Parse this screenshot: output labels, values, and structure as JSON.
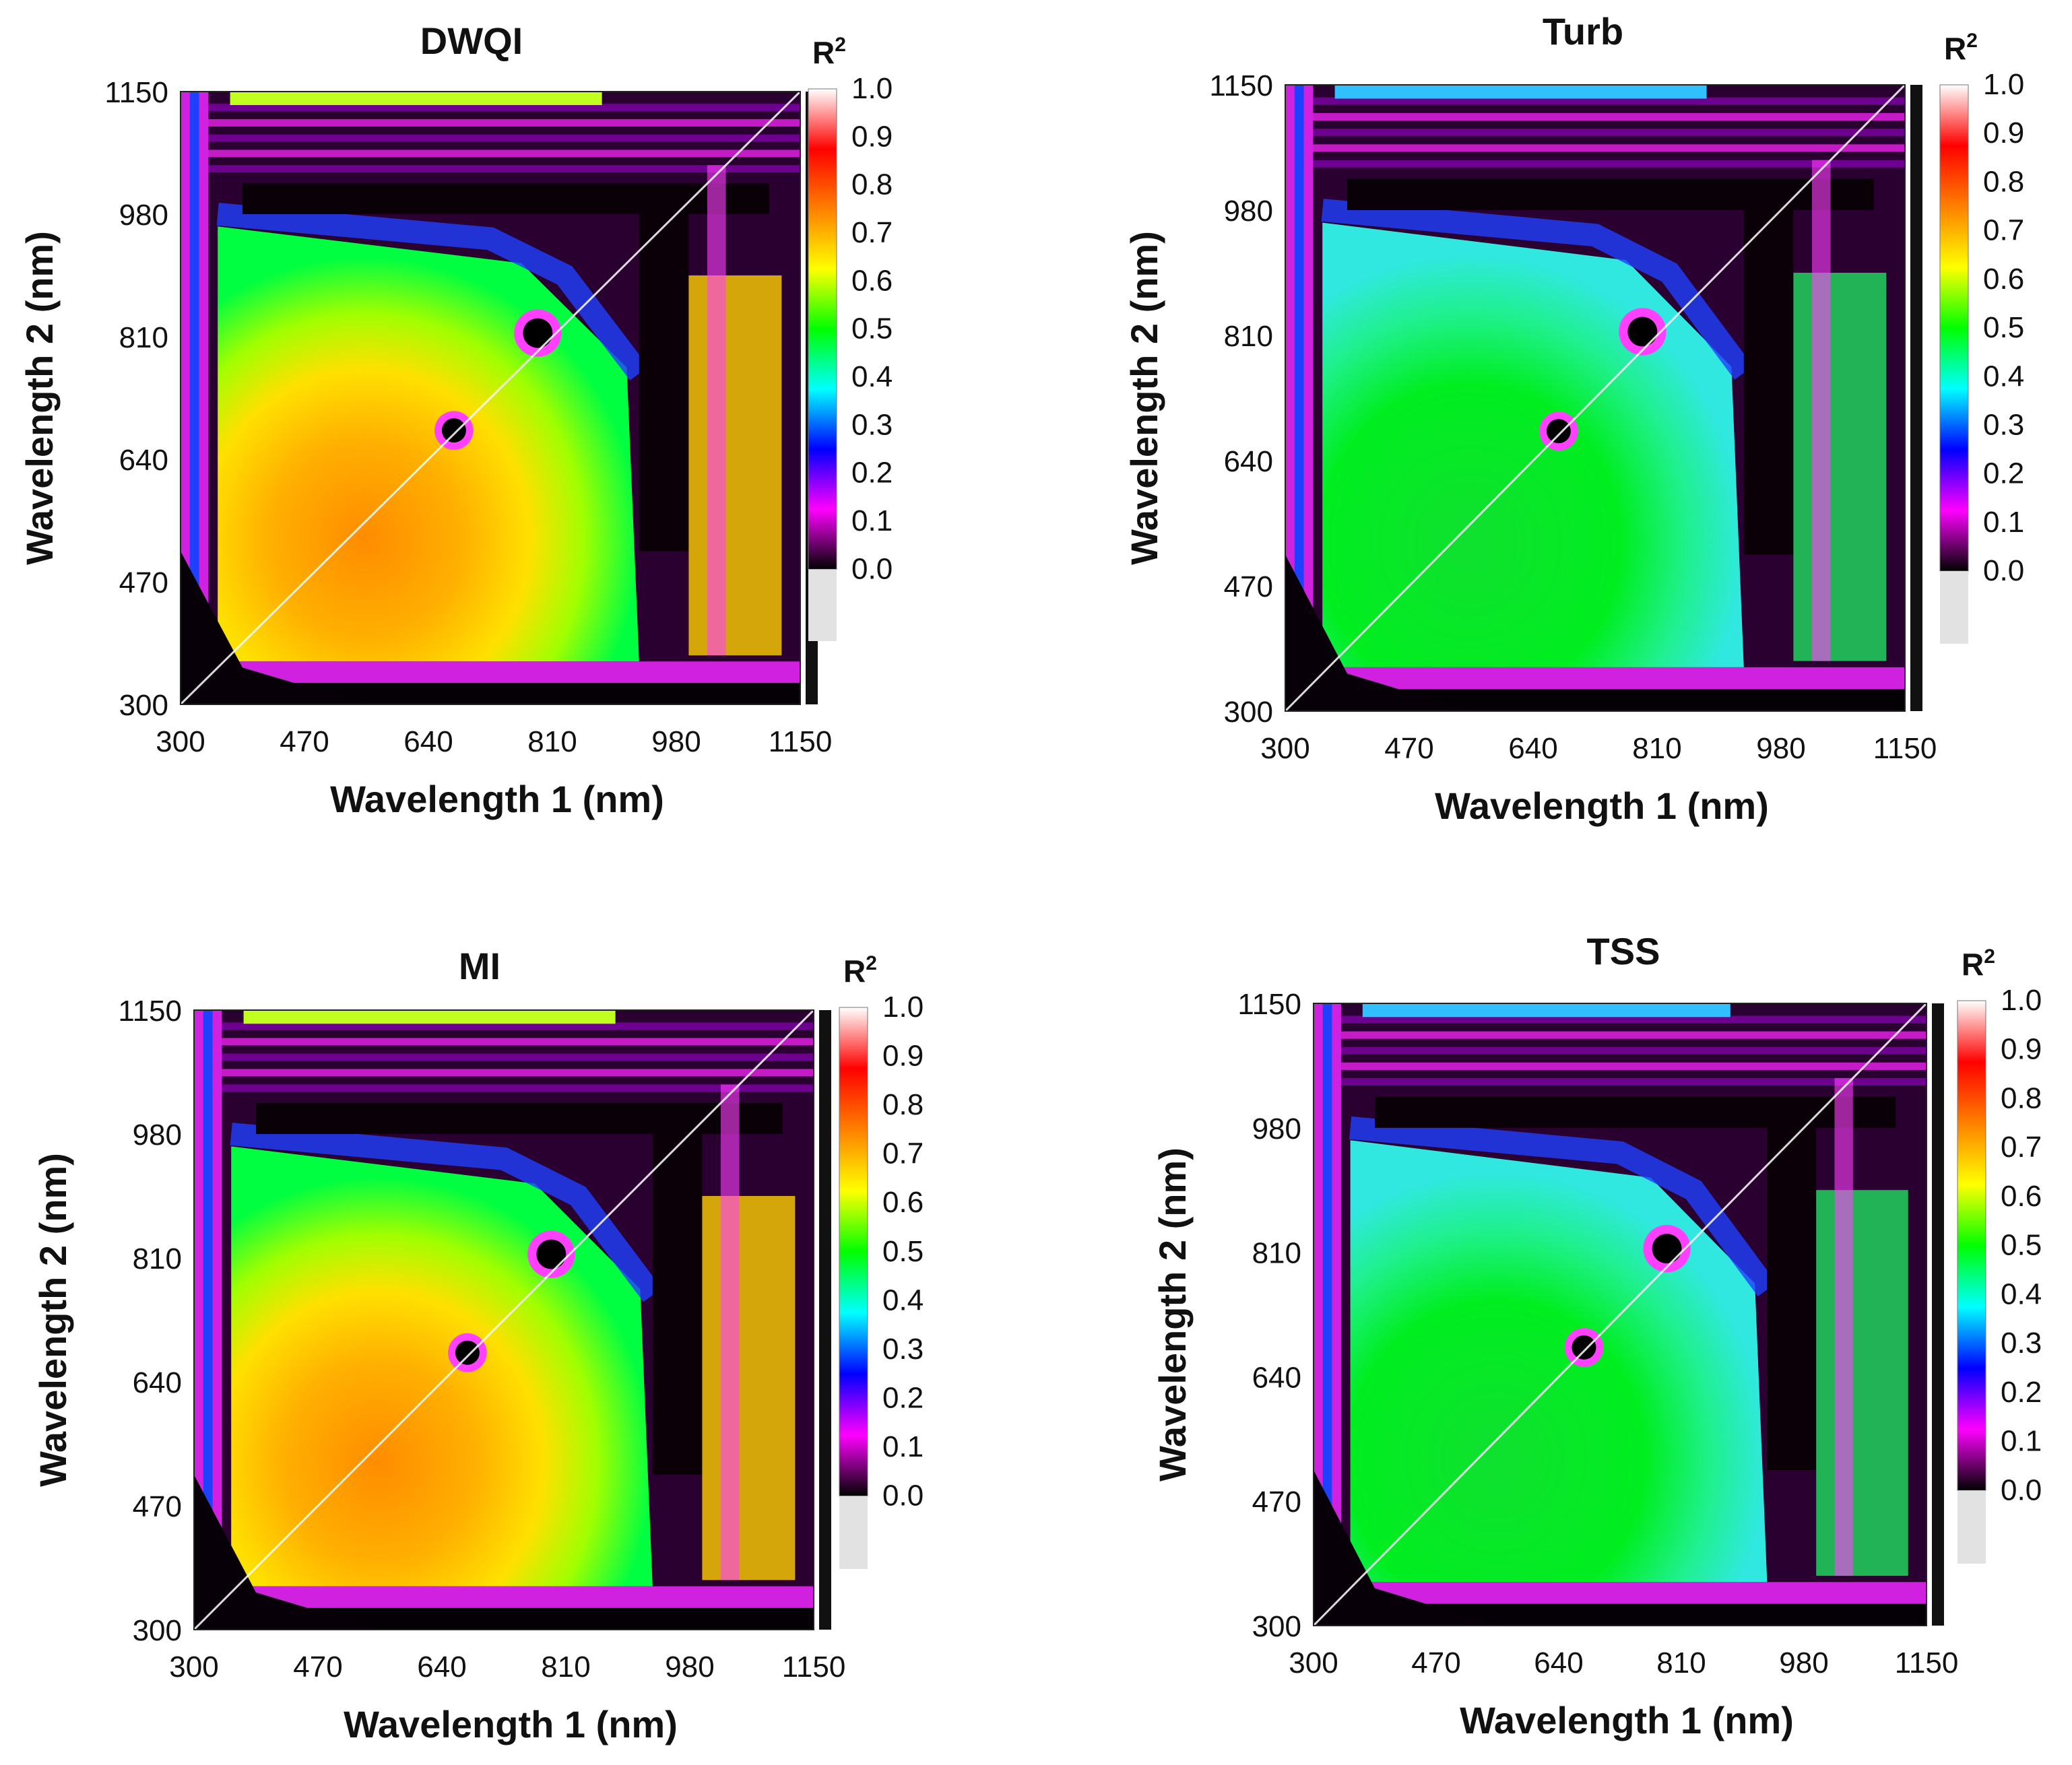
{
  "chart_data": [
    {
      "type": "heatmap",
      "title": "DWQI",
      "xlabel": "Wavelength 1 (nm)",
      "ylabel": "Wavelength 2 (nm)",
      "colorbar_label": "R",
      "colorbar_label_sup": "2",
      "x_ticks": [
        "300",
        "470",
        "640",
        "810",
        "980",
        "1150"
      ],
      "y_ticks": [
        "300",
        "470",
        "640",
        "810",
        "980",
        "1150"
      ],
      "xlim": [
        300,
        1150
      ],
      "ylim": [
        300,
        1150
      ],
      "colorbar_ticks": [
        "0.0",
        "0.1",
        "0.2",
        "0.3",
        "0.4",
        "0.5",
        "0.6",
        "0.7",
        "0.8",
        "0.9",
        "1.0"
      ],
      "colorbar_range": [
        0,
        1
      ],
      "peak_r2": 0.7
    },
    {
      "type": "heatmap",
      "title": "Turb",
      "xlabel": "Wavelength 1 (nm)",
      "ylabel": "Wavelength 2 (nm)",
      "colorbar_label": "R",
      "colorbar_label_sup": "2",
      "x_ticks": [
        "300",
        "470",
        "640",
        "810",
        "980",
        "1150"
      ],
      "y_ticks": [
        "300",
        "470",
        "640",
        "810",
        "980",
        "1150"
      ],
      "xlim": [
        300,
        1150
      ],
      "ylim": [
        300,
        1150
      ],
      "colorbar_ticks": [
        "0.0",
        "0.1",
        "0.2",
        "0.3",
        "0.4",
        "0.5",
        "0.6",
        "0.7",
        "0.8",
        "0.9",
        "1.0"
      ],
      "colorbar_range": [
        0,
        1
      ],
      "peak_r2": 0.55
    },
    {
      "type": "heatmap",
      "title": "MI",
      "xlabel": "Wavelength 1 (nm)",
      "ylabel": "Wavelength 2 (nm)",
      "colorbar_label": "R",
      "colorbar_label_sup": "2",
      "x_ticks": [
        "300",
        "470",
        "640",
        "810",
        "980",
        "1150"
      ],
      "y_ticks": [
        "300",
        "470",
        "640",
        "810",
        "980",
        "1150"
      ],
      "xlim": [
        300,
        1150
      ],
      "ylim": [
        300,
        1150
      ],
      "colorbar_ticks": [
        "0.0",
        "0.1",
        "0.2",
        "0.3",
        "0.4",
        "0.5",
        "0.6",
        "0.7",
        "0.8",
        "0.9",
        "1.0"
      ],
      "colorbar_range": [
        0,
        1
      ],
      "peak_r2": 0.75
    },
    {
      "type": "heatmap",
      "title": "TSS",
      "xlabel": "Wavelength 1 (nm)",
      "ylabel": "Wavelength 2 (nm)",
      "colorbar_label": "R",
      "colorbar_label_sup": "2",
      "x_ticks": [
        "300",
        "470",
        "640",
        "810",
        "980",
        "1150"
      ],
      "y_ticks": [
        "300",
        "470",
        "640",
        "810",
        "980",
        "1150"
      ],
      "xlim": [
        300,
        1150
      ],
      "ylim": [
        300,
        1150
      ],
      "colorbar_ticks": [
        "0.0",
        "0.1",
        "0.2",
        "0.3",
        "0.4",
        "0.5",
        "0.6",
        "0.7",
        "0.8",
        "0.9",
        "1.0"
      ],
      "colorbar_range": [
        0,
        1
      ],
      "peak_r2": 0.55
    }
  ],
  "colorscale": [
    "#000000",
    "#ff00ff",
    "#0000ff",
    "#00ffff",
    "#00ff00",
    "#ffff00",
    "#ff8000",
    "#ff0000",
    "#ffffff"
  ]
}
